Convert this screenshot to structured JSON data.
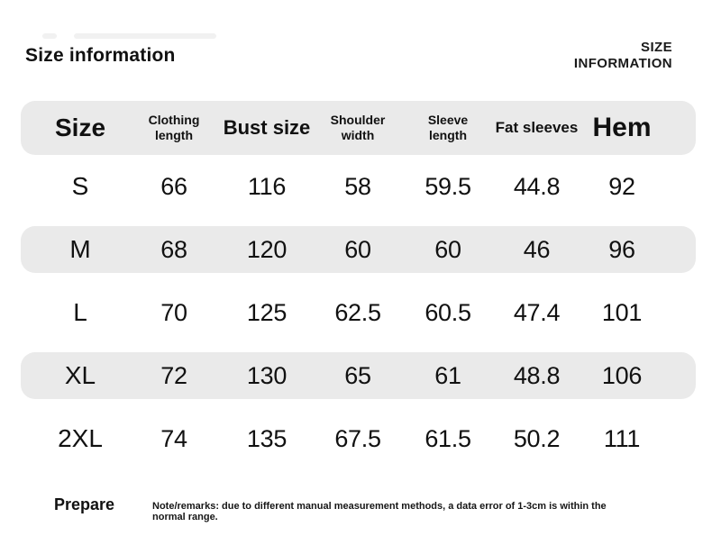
{
  "page": {
    "title": "Size information",
    "corner_title_line1": "SIZE",
    "corner_title_line2": "INFORMATION"
  },
  "table": {
    "columns": [
      {
        "lines": [
          "Size"
        ]
      },
      {
        "lines": [
          "Clothing",
          "length"
        ]
      },
      {
        "lines": [
          "Bust size"
        ]
      },
      {
        "lines": [
          "Shoulder",
          "width"
        ]
      },
      {
        "lines": [
          "Sleeve",
          "length"
        ]
      },
      {
        "lines": [
          "Fat sleeves"
        ]
      },
      {
        "lines": [
          "Hem"
        ]
      }
    ],
    "rows": [
      {
        "size": "S",
        "values": [
          "66",
          "116",
          "58",
          "59.5",
          "44.8",
          "92"
        ]
      },
      {
        "size": "M",
        "values": [
          "68",
          "120",
          "60",
          "60",
          "46",
          "96"
        ]
      },
      {
        "size": "L",
        "values": [
          "70",
          "125",
          "62.5",
          "60.5",
          "47.4",
          "101"
        ]
      },
      {
        "size": "XL",
        "values": [
          "72",
          "130",
          "65",
          "61",
          "48.8",
          "106"
        ]
      },
      {
        "size": "2XL",
        "values": [
          "74",
          "135",
          "67.5",
          "61.5",
          "50.2",
          "111"
        ]
      }
    ]
  },
  "footer": {
    "prepare_label": "Prepare",
    "note": "Note/remarks: due to different manual measurement methods, a data error of 1-3cm is within the normal range."
  },
  "colors": {
    "background": "#ffffff",
    "row_highlight": "#eaeaea",
    "text": "#111111"
  },
  "chart_data": {
    "type": "table",
    "title": "Size information",
    "columns": [
      "Size",
      "Clothing length",
      "Bust size",
      "Shoulder width",
      "Sleeve length",
      "Fat sleeves",
      "Hem"
    ],
    "rows": [
      [
        "S",
        66,
        116,
        58,
        59.5,
        44.8,
        92
      ],
      [
        "M",
        68,
        120,
        60,
        60,
        46,
        96
      ],
      [
        "L",
        70,
        125,
        62.5,
        60.5,
        47.4,
        101
      ],
      [
        "XL",
        72,
        130,
        65,
        61,
        48.8,
        106
      ],
      [
        "2XL",
        74,
        135,
        67.5,
        61.5,
        50.2,
        111
      ]
    ],
    "note": "Note/remarks: due to different manual measurement methods, a data error of 1-3cm is within the normal range.",
    "layout": {
      "striped_rows": [
        "header",
        "M",
        "XL"
      ],
      "stripe_color": "#eaeaea",
      "row_shape": "rounded-pill"
    }
  }
}
